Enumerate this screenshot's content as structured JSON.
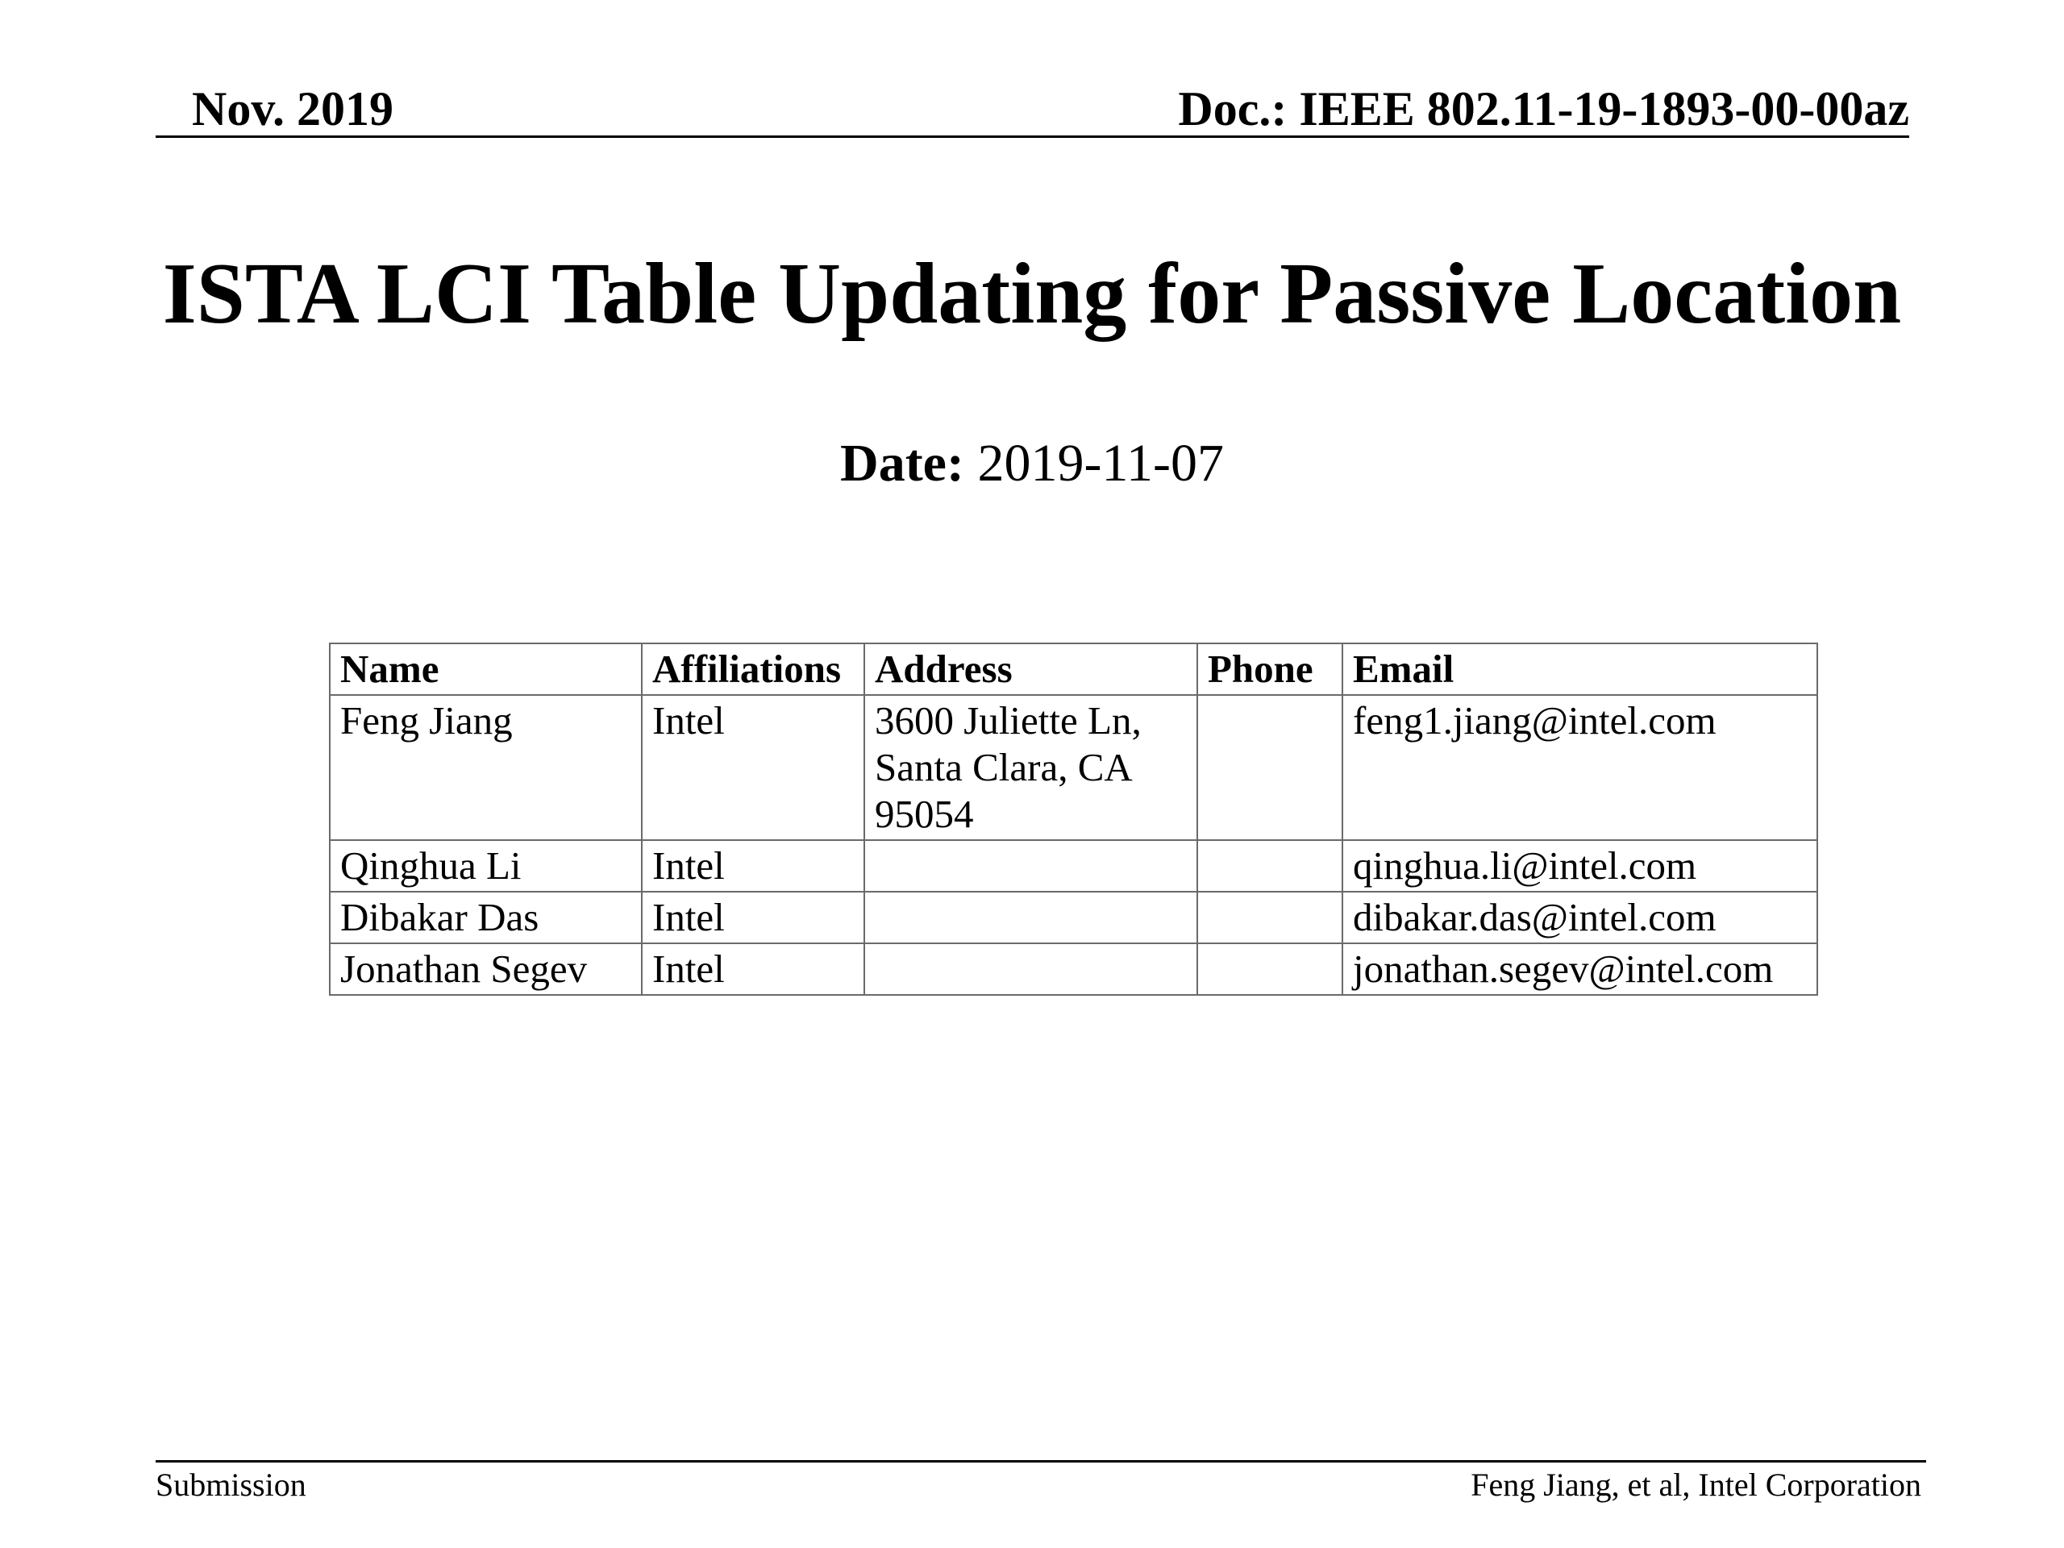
{
  "header": {
    "date": "Nov. 2019",
    "doc_id": "Doc.: IEEE 802.11-19-1893-00-00az"
  },
  "title": "ISTA LCI Table Updating for Passive Location",
  "date_label": "Date:",
  "date_value": "2019-11-07",
  "authors_table": {
    "columns": [
      "Name",
      "Affiliations",
      "Address",
      "Phone",
      "Email"
    ],
    "rows": [
      {
        "name": "Feng Jiang",
        "affiliation": "Intel",
        "address": "3600 Juliette Ln, Santa Clara, CA 95054",
        "phone": "",
        "email": "feng1.jiang@intel.com"
      },
      {
        "name": "Qinghua Li",
        "affiliation": "Intel",
        "address": "",
        "phone": "",
        "email": "qinghua.li@intel.com"
      },
      {
        "name": "Dibakar Das",
        "affiliation": "Intel",
        "address": "",
        "phone": "",
        "email": "dibakar.das@intel.com"
      },
      {
        "name": "Jonathan Segev",
        "affiliation": "Intel",
        "address": "",
        "phone": "",
        "email": "jonathan.segev@intel.com"
      }
    ]
  },
  "footer": {
    "left": "Submission",
    "right": "Feng Jiang, et al, Intel Corporation"
  }
}
